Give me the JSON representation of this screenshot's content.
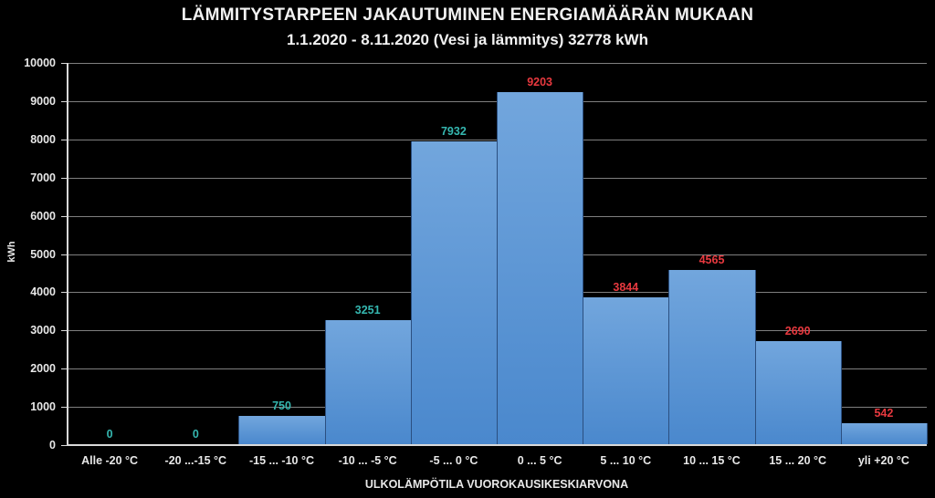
{
  "chart_data": {
    "type": "bar",
    "title": "LÄMMITYSTARPEEN JAKAUTUMINEN ENERGIAMÄÄRÄN MUKAAN",
    "subtitle": "1.1.2020 - 8.11.2020 (Vesi ja lämmitys) 32778 kWh",
    "xlabel": "ULKOLÄMPÖTILA VUOROKAUSIKESKIARVONA",
    "ylabel": "kWh",
    "ylim": [
      0,
      10000
    ],
    "yticks": [
      "0",
      "1000",
      "2000",
      "3000",
      "4000",
      "5000",
      "6000",
      "7000",
      "8000",
      "9000",
      "10000"
    ],
    "grid": true,
    "categories": [
      "Alle -20 °C",
      "-20 ...-15 °C",
      "-15 ... -10 °C",
      "-10 ... -5 °C",
      "-5 ... 0 °C",
      "0 ... 5 °C",
      "5 ... 10 °C",
      "10 ... 15 °C",
      "15 ... 20 °C",
      "yli +20 °C"
    ],
    "values": [
      0,
      0,
      750,
      3251,
      7932,
      9203,
      3844,
      4565,
      2690,
      542
    ],
    "value_labels": [
      "0",
      "0",
      "750",
      "3251",
      "7932",
      "9203",
      "3844",
      "4565",
      "2690",
      "542"
    ],
    "label_colors": [
      "#35b7b0",
      "#35b7b0",
      "#35b7b0",
      "#35b7b0",
      "#35b7b0",
      "#e8393f",
      "#e8393f",
      "#e8393f",
      "#e8393f",
      "#e8393f"
    ],
    "bar_color": "#5b9bd5",
    "background": "#000000"
  }
}
